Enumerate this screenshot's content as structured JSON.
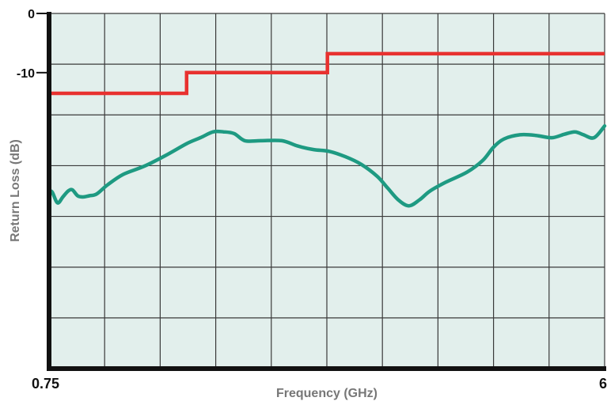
{
  "chart_data": {
    "type": "line",
    "xlabel": "Frequency (GHz)",
    "ylabel": "Return Loss (dB)",
    "xlim": [
      0.75,
      6
    ],
    "ylim": [
      -60,
      0
    ],
    "x_tick_labels": [
      "0.75",
      "6"
    ],
    "y_tick_labels": [
      "0",
      "-10"
    ],
    "grid": true,
    "colors": {
      "plot_background": "#e2efec",
      "grid": "#3a3a3a",
      "axis": "#111111",
      "limit_line": "#e8312f",
      "measured": "#1e9a82"
    },
    "series": [
      {
        "role": "limit",
        "color": "#e8312f",
        "x": [
          0.75,
          2.05,
          2.05,
          3.38,
          3.38,
          6.0
        ],
        "y": [
          -13.5,
          -13.5,
          -10.0,
          -10.0,
          -6.8,
          -6.8
        ]
      },
      {
        "role": "measured",
        "color": "#1e9a82",
        "x": [
          0.75,
          0.78,
          0.83,
          0.88,
          0.93,
          0.97,
          1.02,
          1.07,
          1.13,
          1.2,
          1.3,
          1.45,
          1.65,
          1.85,
          2.05,
          2.18,
          2.3,
          2.4,
          2.5,
          2.6,
          2.75,
          2.95,
          3.1,
          3.25,
          3.4,
          3.55,
          3.7,
          3.85,
          3.95,
          4.05,
          4.15,
          4.25,
          4.35,
          4.5,
          4.7,
          4.85,
          4.95,
          5.05,
          5.2,
          5.35,
          5.5,
          5.62,
          5.72,
          5.8,
          5.9,
          6.0
        ],
        "y": [
          -30.0,
          -30.2,
          -32.0,
          -31.0,
          -30.0,
          -29.8,
          -30.8,
          -31.0,
          -30.8,
          -30.5,
          -29.0,
          -27.2,
          -25.8,
          -24.0,
          -22.0,
          -21.0,
          -20.0,
          -20.0,
          -20.3,
          -21.5,
          -21.5,
          -21.5,
          -22.4,
          -23.0,
          -23.3,
          -24.2,
          -25.5,
          -27.5,
          -29.5,
          -31.5,
          -32.5,
          -31.5,
          -30.0,
          -28.5,
          -26.8,
          -24.8,
          -22.6,
          -21.2,
          -20.5,
          -20.6,
          -21.0,
          -20.4,
          -20.0,
          -20.5,
          -21.0,
          -19.0
        ]
      }
    ]
  }
}
